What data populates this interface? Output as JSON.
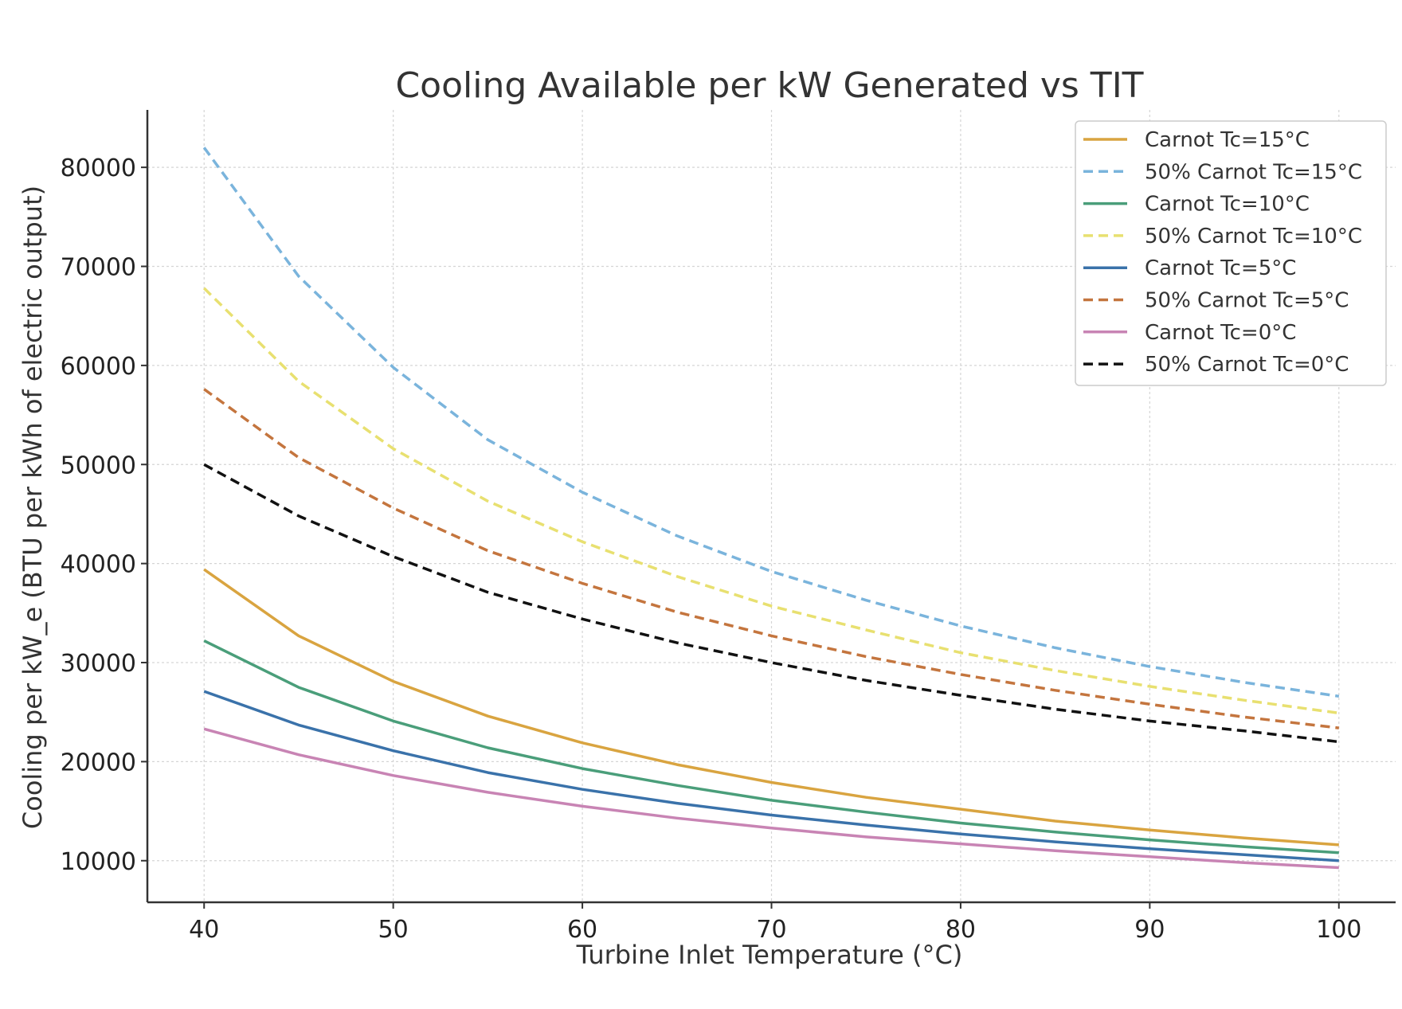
{
  "chart_data": {
    "type": "line",
    "title": "Cooling Available per kW Generated vs TIT",
    "xlabel": "Turbine Inlet Temperature (°C)",
    "ylabel": "Cooling per kW_e (BTU per kWh of electric output)",
    "xlim": [
      37,
      103
    ],
    "ylim": [
      5800,
      85800
    ],
    "x_ticks": [
      40,
      50,
      60,
      70,
      80,
      90,
      100
    ],
    "y_ticks": [
      10000,
      20000,
      30000,
      40000,
      50000,
      60000,
      70000,
      80000
    ],
    "grid": true,
    "legend_position": "top-right",
    "x": [
      40,
      45,
      50,
      55,
      60,
      65,
      70,
      75,
      80,
      85,
      90,
      95,
      100
    ],
    "series": [
      {
        "name": "Carnot Tc=15°C",
        "color": "#d9a440",
        "style": "solid",
        "values": [
          39400,
          32700,
          28100,
          24600,
          21900,
          19700,
          17900,
          16400,
          15200,
          14000,
          13100,
          12300,
          11600
        ]
      },
      {
        "name": "50% Carnot Tc=15°C",
        "color": "#7ab4dc",
        "style": "dashed",
        "values": [
          82000,
          69000,
          59800,
          52500,
          47200,
          42800,
          39200,
          36300,
          33700,
          31500,
          29600,
          28000,
          26600
        ]
      },
      {
        "name": "Carnot Tc=10°C",
        "color": "#4a9e7a",
        "style": "solid",
        "values": [
          32200,
          27500,
          24100,
          21400,
          19300,
          17600,
          16100,
          14900,
          13800,
          12900,
          12100,
          11400,
          10800
        ]
      },
      {
        "name": "50% Carnot Tc=10°C",
        "color": "#e8e070",
        "style": "dashed",
        "values": [
          67800,
          58400,
          51600,
          46300,
          42200,
          38700,
          35700,
          33300,
          31000,
          29200,
          27600,
          26200,
          24900
        ]
      },
      {
        "name": "Carnot Tc=5°C",
        "color": "#3a72aa",
        "style": "solid",
        "values": [
          27100,
          23700,
          21100,
          18900,
          17200,
          15800,
          14600,
          13600,
          12700,
          11900,
          11200,
          10600,
          10000
        ]
      },
      {
        "name": "50% Carnot Tc=5°C",
        "color": "#c4753e",
        "style": "dashed",
        "values": [
          57600,
          50700,
          45600,
          41300,
          38000,
          35100,
          32700,
          30600,
          28800,
          27200,
          25800,
          24500,
          23400
        ]
      },
      {
        "name": "Carnot Tc=0°C",
        "color": "#c884b4",
        "style": "solid",
        "values": [
          23300,
          20700,
          18600,
          16900,
          15500,
          14300,
          13300,
          12400,
          11700,
          11000,
          10400,
          9800,
          9300
        ]
      },
      {
        "name": "50% Carnot Tc=0°C",
        "color": "#111111",
        "style": "dashed",
        "values": [
          50000,
          44800,
          40700,
          37100,
          34400,
          32000,
          30000,
          28200,
          26700,
          25300,
          24100,
          23100,
          22000
        ]
      }
    ]
  }
}
